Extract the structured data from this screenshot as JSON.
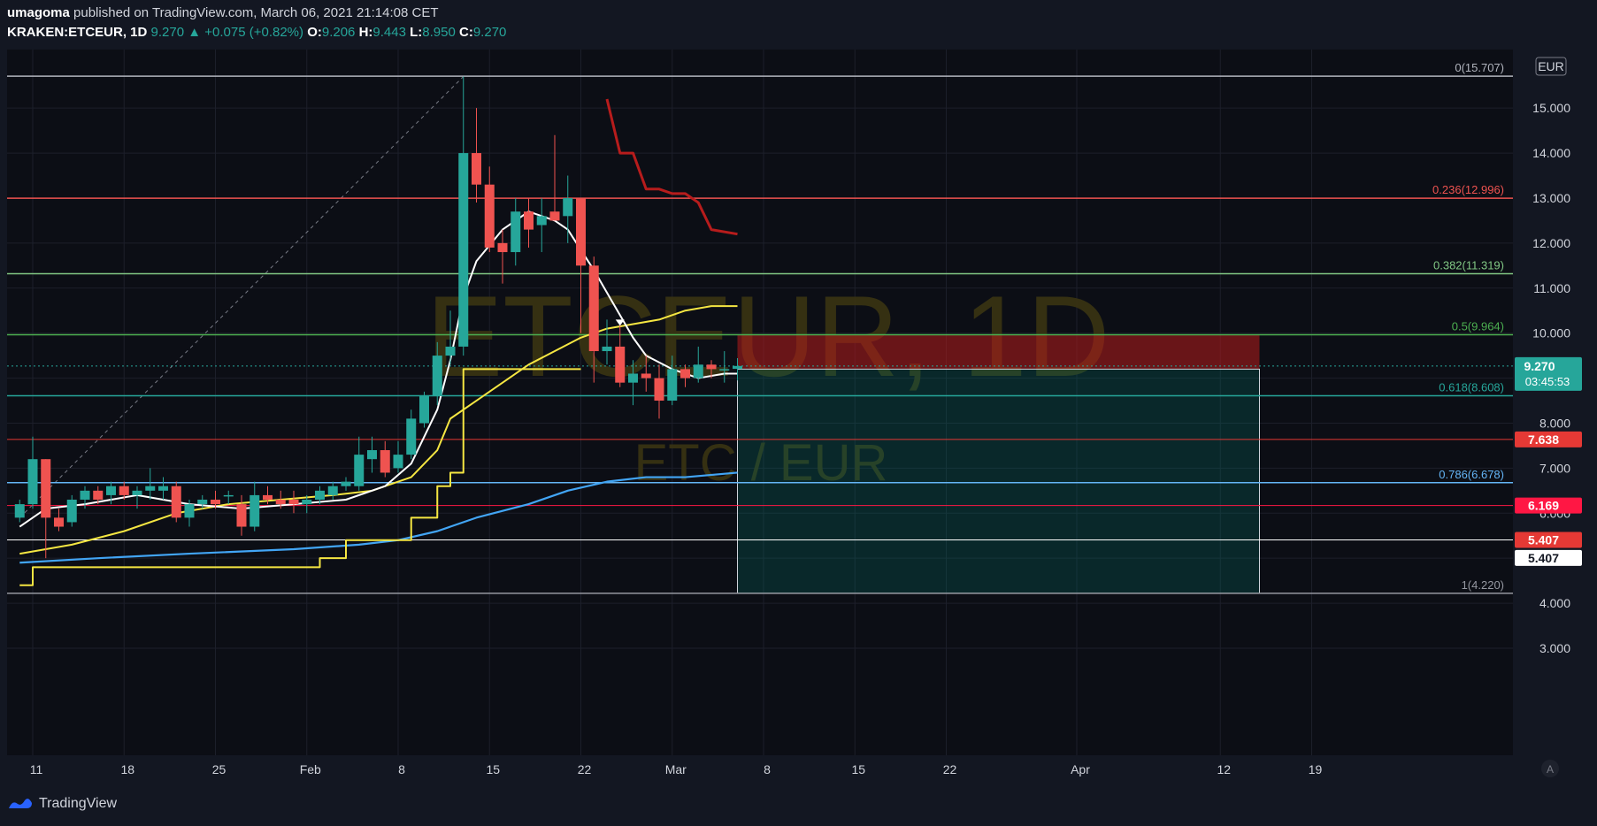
{
  "header": {
    "author": "umagoma",
    "published_text": "published on TradingView.com, March 06, 2021 21:14:08 CET",
    "symbol": "KRAKEN:ETCEUR, 1D",
    "last": "9.270",
    "change_arrow": "▲",
    "change": "+0.075 (+0.82%)",
    "o_label": "O:",
    "o_value": "9.206",
    "h_label": "H:",
    "h_value": "9.443",
    "l_label": "L:",
    "l_value": "8.950",
    "c_label": "C:",
    "c_value": "9.270"
  },
  "watermark": {
    "symbol": "ETCEUR, 1D",
    "pair": "ETC / EUR"
  },
  "currency_label": "EUR",
  "footer": {
    "brand": "TradingView"
  },
  "colors": {
    "background": "#131722",
    "up": "#26a69a",
    "down": "#ef5350",
    "ma_white": "#ffffff",
    "ma_yellow": "#f5e642",
    "ma_blue": "#42a5f5",
    "red_projection": "#b71c1c"
  },
  "chart_data": {
    "type": "candlestick",
    "ylim": [
      2.5,
      16.3
    ],
    "y_ticks": [
      "3.000",
      "4.000",
      "5.000",
      "6.000",
      "7.000",
      "8.000",
      "9.000",
      "10.000",
      "11.000",
      "12.000",
      "13.000",
      "14.000",
      "15.000"
    ],
    "x_ticks": [
      {
        "label": "11",
        "day": 0
      },
      {
        "label": "18",
        "day": 7
      },
      {
        "label": "25",
        "day": 14
      },
      {
        "label": "Feb",
        "day": 21
      },
      {
        "label": "8",
        "day": 28
      },
      {
        "label": "15",
        "day": 35
      },
      {
        "label": "22",
        "day": 42
      },
      {
        "label": "Mar",
        "day": 49
      },
      {
        "label": "8",
        "day": 56
      },
      {
        "label": "15",
        "day": 63
      },
      {
        "label": "22",
        "day": 70
      },
      {
        "label": "Apr",
        "day": 80
      },
      {
        "label": "12",
        "day": 91
      },
      {
        "label": "19",
        "day": 98
      }
    ],
    "candles_note": "day index 0 = Jan 11, 2021",
    "candles": [
      {
        "d": -1,
        "o": 5.9,
        "h": 6.3,
        "l": 5.8,
        "c": 6.2
      },
      {
        "d": 0,
        "o": 6.2,
        "h": 7.7,
        "l": 6.1,
        "c": 7.2
      },
      {
        "d": 1,
        "o": 7.2,
        "h": 7.2,
        "l": 5.0,
        "c": 5.9
      },
      {
        "d": 2,
        "o": 5.9,
        "h": 6.1,
        "l": 5.6,
        "c": 5.7
      },
      {
        "d": 3,
        "o": 5.8,
        "h": 6.4,
        "l": 5.7,
        "c": 6.3
      },
      {
        "d": 4,
        "o": 6.3,
        "h": 6.6,
        "l": 6.1,
        "c": 6.5
      },
      {
        "d": 5,
        "o": 6.5,
        "h": 6.6,
        "l": 6.2,
        "c": 6.3
      },
      {
        "d": 6,
        "o": 6.4,
        "h": 6.7,
        "l": 6.2,
        "c": 6.6
      },
      {
        "d": 7,
        "o": 6.6,
        "h": 6.7,
        "l": 6.3,
        "c": 6.4
      },
      {
        "d": 8,
        "o": 6.4,
        "h": 6.6,
        "l": 6.1,
        "c": 6.5
      },
      {
        "d": 9,
        "o": 6.5,
        "h": 7.0,
        "l": 6.3,
        "c": 6.6
      },
      {
        "d": 10,
        "o": 6.5,
        "h": 6.8,
        "l": 6.3,
        "c": 6.6
      },
      {
        "d": 11,
        "o": 6.6,
        "h": 6.7,
        "l": 5.8,
        "c": 5.9
      },
      {
        "d": 12,
        "o": 5.9,
        "h": 6.3,
        "l": 5.7,
        "c": 6.2
      },
      {
        "d": 13,
        "o": 6.2,
        "h": 6.4,
        "l": 6.1,
        "c": 6.3
      },
      {
        "d": 14,
        "o": 6.3,
        "h": 6.5,
        "l": 6.1,
        "c": 6.2
      },
      {
        "d": 15,
        "o": 6.4,
        "h": 6.5,
        "l": 6.2,
        "c": 6.4
      },
      {
        "d": 16,
        "o": 6.2,
        "h": 6.4,
        "l": 5.5,
        "c": 5.7
      },
      {
        "d": 17,
        "o": 5.7,
        "h": 6.7,
        "l": 5.6,
        "c": 6.4
      },
      {
        "d": 18,
        "o": 6.4,
        "h": 6.6,
        "l": 6.2,
        "c": 6.3
      },
      {
        "d": 19,
        "o": 6.3,
        "h": 6.5,
        "l": 6.1,
        "c": 6.2
      },
      {
        "d": 20,
        "o": 6.3,
        "h": 6.5,
        "l": 6.0,
        "c": 6.2
      },
      {
        "d": 21,
        "o": 6.2,
        "h": 6.4,
        "l": 6.0,
        "c": 6.3
      },
      {
        "d": 22,
        "o": 6.3,
        "h": 6.6,
        "l": 6.2,
        "c": 6.5
      },
      {
        "d": 23,
        "o": 6.4,
        "h": 6.7,
        "l": 6.3,
        "c": 6.6
      },
      {
        "d": 24,
        "o": 6.6,
        "h": 6.8,
        "l": 6.5,
        "c": 6.7
      },
      {
        "d": 25,
        "o": 6.6,
        "h": 7.7,
        "l": 6.5,
        "c": 7.3
      },
      {
        "d": 26,
        "o": 7.2,
        "h": 7.7,
        "l": 6.9,
        "c": 7.4
      },
      {
        "d": 27,
        "o": 7.4,
        "h": 7.6,
        "l": 6.8,
        "c": 6.9
      },
      {
        "d": 28,
        "o": 7.0,
        "h": 7.6,
        "l": 6.9,
        "c": 7.3
      },
      {
        "d": 29,
        "o": 7.3,
        "h": 8.3,
        "l": 7.2,
        "c": 8.1
      },
      {
        "d": 30,
        "o": 8.0,
        "h": 8.7,
        "l": 7.9,
        "c": 8.6
      },
      {
        "d": 31,
        "o": 8.6,
        "h": 9.8,
        "l": 8.4,
        "c": 9.5
      },
      {
        "d": 32,
        "o": 9.5,
        "h": 10.5,
        "l": 9.3,
        "c": 9.7
      },
      {
        "d": 33,
        "o": 9.7,
        "h": 15.7,
        "l": 9.5,
        "c": 14.0
      },
      {
        "d": 34,
        "o": 14.0,
        "h": 15.0,
        "l": 12.9,
        "c": 13.3
      },
      {
        "d": 35,
        "o": 13.3,
        "h": 13.7,
        "l": 11.8,
        "c": 11.9
      },
      {
        "d": 36,
        "o": 12.0,
        "h": 12.3,
        "l": 11.1,
        "c": 11.8
      },
      {
        "d": 37,
        "o": 11.8,
        "h": 13.0,
        "l": 11.5,
        "c": 12.7
      },
      {
        "d": 38,
        "o": 12.7,
        "h": 13.0,
        "l": 11.9,
        "c": 12.3
      },
      {
        "d": 39,
        "o": 12.4,
        "h": 13.0,
        "l": 11.8,
        "c": 12.6
      },
      {
        "d": 40,
        "o": 12.7,
        "h": 14.4,
        "l": 12.5,
        "c": 12.5
      },
      {
        "d": 41,
        "o": 12.6,
        "h": 13.5,
        "l": 12.0,
        "c": 13.0
      },
      {
        "d": 42,
        "o": 13.0,
        "h": 13.0,
        "l": 10.0,
        "c": 11.5
      },
      {
        "d": 43,
        "o": 11.5,
        "h": 11.7,
        "l": 8.9,
        "c": 9.6
      },
      {
        "d": 44,
        "o": 9.6,
        "h": 10.3,
        "l": 9.3,
        "c": 9.7
      },
      {
        "d": 45,
        "o": 9.7,
        "h": 10.2,
        "l": 8.8,
        "c": 8.9
      },
      {
        "d": 46,
        "o": 8.9,
        "h": 9.4,
        "l": 8.4,
        "c": 9.1
      },
      {
        "d": 47,
        "o": 9.1,
        "h": 9.5,
        "l": 8.7,
        "c": 9.0
      },
      {
        "d": 48,
        "o": 9.0,
        "h": 9.3,
        "l": 8.1,
        "c": 8.5
      },
      {
        "d": 49,
        "o": 8.5,
        "h": 9.5,
        "l": 8.4,
        "c": 9.2
      },
      {
        "d": 50,
        "o": 9.2,
        "h": 9.3,
        "l": 8.8,
        "c": 9.0
      },
      {
        "d": 51,
        "o": 9.0,
        "h": 9.7,
        "l": 8.9,
        "c": 9.3
      },
      {
        "d": 52,
        "o": 9.3,
        "h": 9.4,
        "l": 9.0,
        "c": 9.2
      },
      {
        "d": 53,
        "o": 9.2,
        "h": 9.6,
        "l": 8.9,
        "c": 9.2
      },
      {
        "d": 54,
        "o": 9.206,
        "h": 9.443,
        "l": 8.95,
        "c": 9.27
      }
    ],
    "ma_white": [
      [
        -1,
        5.7
      ],
      [
        1,
        6.1
      ],
      [
        4,
        6.2
      ],
      [
        8,
        6.4
      ],
      [
        12,
        6.2
      ],
      [
        16,
        6.1
      ],
      [
        20,
        6.2
      ],
      [
        24,
        6.3
      ],
      [
        27,
        6.6
      ],
      [
        29,
        7.1
      ],
      [
        31,
        8.3
      ],
      [
        32,
        9.4
      ],
      [
        33,
        10.8
      ],
      [
        34,
        11.6
      ],
      [
        36,
        12.3
      ],
      [
        38,
        12.7
      ],
      [
        40,
        12.5
      ],
      [
        41,
        12.3
      ],
      [
        43,
        11.4
      ],
      [
        44,
        10.9
      ],
      [
        46,
        9.9
      ],
      [
        47,
        9.5
      ],
      [
        49,
        9.2
      ],
      [
        51,
        9.0
      ],
      [
        53,
        9.1
      ],
      [
        54,
        9.1
      ]
    ],
    "ma_yellow": [
      [
        -1,
        5.1
      ],
      [
        3,
        5.3
      ],
      [
        7,
        5.6
      ],
      [
        11,
        6.0
      ],
      [
        15,
        6.2
      ],
      [
        19,
        6.3
      ],
      [
        23,
        6.4
      ],
      [
        26,
        6.5
      ],
      [
        29,
        6.8
      ],
      [
        31,
        7.4
      ],
      [
        32,
        8.1
      ],
      [
        34,
        8.5
      ],
      [
        36,
        8.9
      ],
      [
        38,
        9.3
      ],
      [
        40,
        9.6
      ],
      [
        42,
        9.9
      ],
      [
        44,
        10.1
      ],
      [
        46,
        10.2
      ],
      [
        48,
        10.3
      ],
      [
        50,
        10.5
      ],
      [
        52,
        10.6
      ],
      [
        54,
        10.6
      ]
    ],
    "ma_yellow_step": [
      [
        -1,
        4.4
      ],
      [
        0,
        4.8
      ],
      [
        20,
        4.8
      ],
      [
        22,
        5.0
      ],
      [
        24,
        5.4
      ],
      [
        28,
        5.4
      ],
      [
        29,
        5.9
      ],
      [
        31,
        6.6
      ],
      [
        32,
        6.9
      ],
      [
        33,
        9.2
      ],
      [
        42,
        9.2
      ]
    ],
    "ma_blue": [
      [
        -1,
        4.9
      ],
      [
        5,
        5.0
      ],
      [
        12,
        5.1
      ],
      [
        20,
        5.2
      ],
      [
        25,
        5.3
      ],
      [
        28,
        5.4
      ],
      [
        31,
        5.6
      ],
      [
        34,
        5.9
      ],
      [
        38,
        6.2
      ],
      [
        41,
        6.5
      ],
      [
        44,
        6.7
      ],
      [
        47,
        6.8
      ],
      [
        50,
        6.8
      ],
      [
        54,
        6.9
      ]
    ],
    "red_projection": [
      [
        44,
        15.2
      ],
      [
        45,
        14.0
      ],
      [
        46,
        14.0
      ],
      [
        47,
        13.2
      ],
      [
        48,
        13.2
      ],
      [
        49,
        13.1
      ],
      [
        50,
        13.1
      ],
      [
        51,
        12.9
      ],
      [
        52,
        12.3
      ],
      [
        54,
        12.2
      ]
    ],
    "fib_levels": [
      {
        "label": "0(15.707)",
        "value": 15.707,
        "color": "#b2b5be"
      },
      {
        "label": "0.236(12.996)",
        "value": 12.996,
        "color": "#ef5350"
      },
      {
        "label": "0.382(11.319)",
        "value": 11.319,
        "color": "#81c784"
      },
      {
        "label": "0.5(9.964)",
        "value": 9.964,
        "color": "#4caf50"
      },
      {
        "label": "0.618(8.608)",
        "value": 8.608,
        "color": "#26a69a"
      },
      {
        "label": "0.786(6.678)",
        "value": 6.678,
        "color": "#64b5f6"
      },
      {
        "label": "1(4.220)",
        "value": 4.22,
        "color": "#9598a1"
      }
    ],
    "horizontal_lines": [
      {
        "value": 7.638,
        "label": "7.638",
        "color": "#e53935"
      },
      {
        "value": 6.169,
        "label": "6.169",
        "color": "#ff1744"
      },
      {
        "value": 5.407,
        "label": "5.407",
        "color": "#ffffff"
      }
    ],
    "extra_price_labels": [
      {
        "value": 5.407,
        "label": "5.407",
        "color": "#e53935"
      }
    ],
    "current_price": {
      "value": 9.27,
      "label": "9.270",
      "countdown": "03:45:53"
    },
    "position": {
      "entry": 9.2,
      "stop": 9.964,
      "target": 4.22,
      "start_day": 54,
      "end_day": 94
    },
    "trend_line": {
      "from": [
        -1,
        5.9
      ],
      "to": [
        33,
        15.7
      ]
    },
    "marker": {
      "day": 45,
      "value": 10.3
    }
  }
}
